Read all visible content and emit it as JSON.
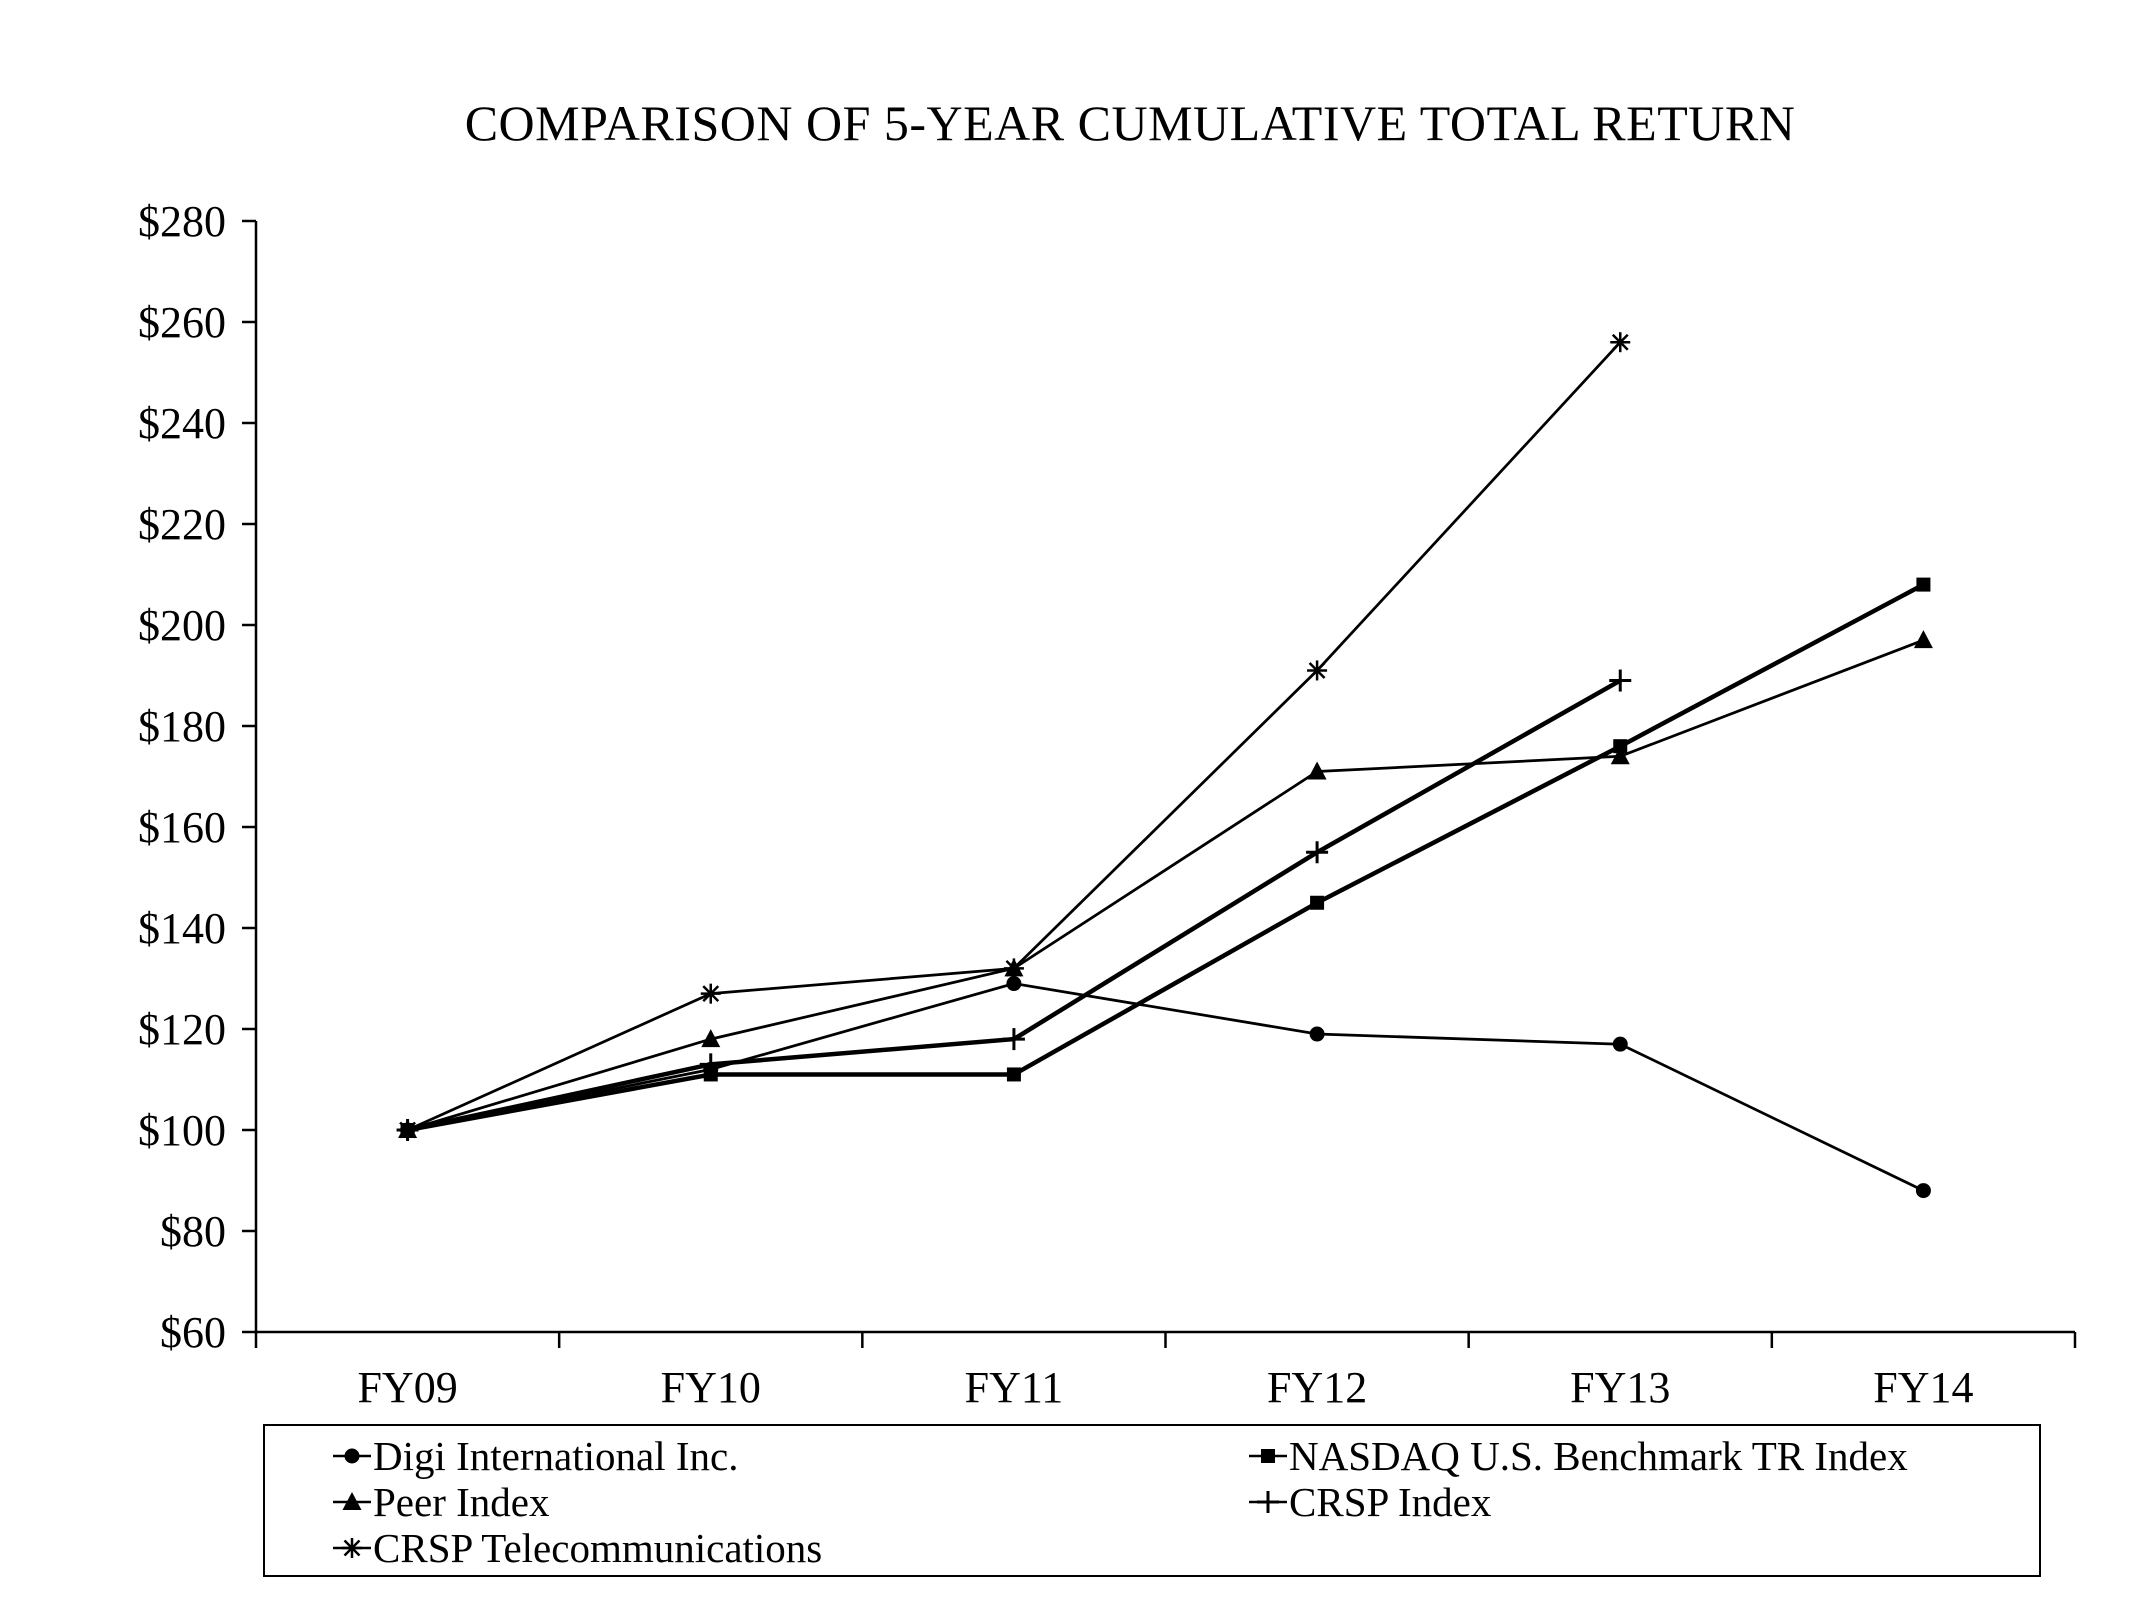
{
  "page": {
    "background": "#ffffff",
    "foreground": "#000000"
  },
  "chart_data": {
    "type": "line",
    "title": "COMPARISON OF 5-YEAR CUMULATIVE TOTAL RETURN",
    "categories": [
      "FY09",
      "FY10",
      "FY11",
      "FY12",
      "FY13",
      "FY14"
    ],
    "y_ticks": [
      280,
      260,
      240,
      220,
      200,
      180,
      160,
      140,
      120,
      100,
      80,
      60
    ],
    "y_tick_prefix": "$",
    "ylim": [
      60,
      280
    ],
    "grid": false,
    "line_color": "#000000",
    "legend_position": "bottom-box",
    "series": [
      {
        "name": "Digi International Inc.",
        "marker": "circle",
        "thick": false,
        "values": [
          100,
          112,
          129,
          119,
          117,
          88
        ]
      },
      {
        "name": "NASDAQ U.S. Benchmark TR Index",
        "marker": "square",
        "thick": true,
        "values": [
          100,
          111,
          111,
          145,
          176,
          208
        ]
      },
      {
        "name": "Peer Index",
        "marker": "triangle",
        "thick": false,
        "values": [
          100,
          118,
          132,
          171,
          174,
          197
        ]
      },
      {
        "name": "CRSP Index",
        "marker": "plus",
        "thick": true,
        "values": [
          100,
          113,
          118,
          155,
          189,
          null
        ]
      },
      {
        "name": "CRSP Telecommunications",
        "marker": "asterisk",
        "thick": false,
        "values": [
          100,
          127,
          132,
          191,
          256,
          null
        ]
      }
    ],
    "legend_rows": [
      [
        "Digi International Inc.",
        "NASDAQ U.S. Benchmark TR Index"
      ],
      [
        "Peer Index",
        "CRSP Index"
      ],
      [
        "CRSP Telecommunications",
        null
      ]
    ]
  }
}
